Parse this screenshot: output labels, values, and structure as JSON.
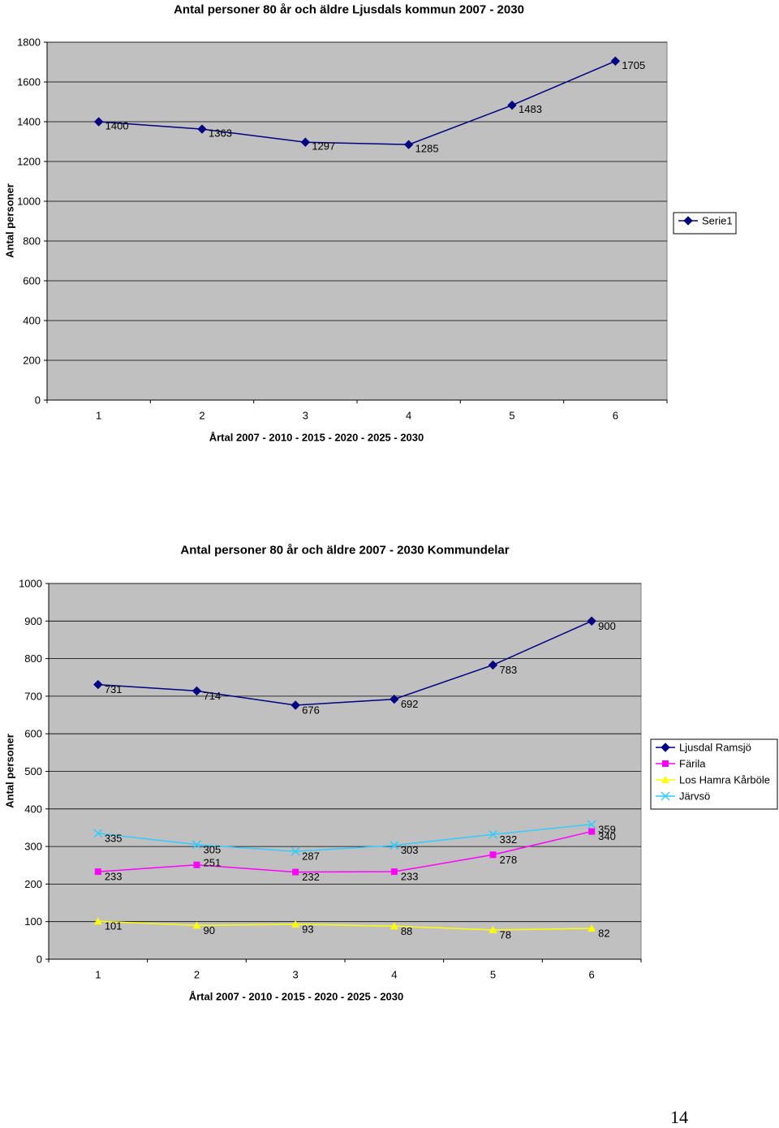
{
  "page_number": "14",
  "chart_data": [
    {
      "type": "line",
      "title": "Antal personer 80 år och äldre Ljusdals kommun 2007 - 2030",
      "xlabel": "Årtal 2007 - 2010 - 2015 - 2020 - 2025 - 2030",
      "ylabel": "Antal personer",
      "categories": [
        "1",
        "2",
        "3",
        "4",
        "5",
        "6"
      ],
      "ylim": [
        0,
        1800
      ],
      "yticks": [
        0,
        200,
        400,
        600,
        800,
        1000,
        1200,
        1400,
        1600,
        1800
      ],
      "grid": true,
      "legend_position": "right",
      "series": [
        {
          "name": "Serie1",
          "values": [
            1400,
            1363,
            1297,
            1285,
            1483,
            1705
          ],
          "color": "#000080",
          "marker": "diamond"
        }
      ]
    },
    {
      "type": "line",
      "title": "Antal personer 80 år och äldre 2007 - 2030 Kommundelar",
      "xlabel": "Årtal 2007 - 2010 - 2015 - 2020 - 2025 - 2030",
      "ylabel": "Antal personer",
      "categories": [
        "1",
        "2",
        "3",
        "4",
        "5",
        "6"
      ],
      "ylim": [
        0,
        1000
      ],
      "yticks": [
        0,
        100,
        200,
        300,
        400,
        500,
        600,
        700,
        800,
        900,
        1000
      ],
      "grid": true,
      "legend_position": "right",
      "series": [
        {
          "name": "Ljusdal Ramsjö",
          "values": [
            731,
            714,
            676,
            692,
            783,
            900
          ],
          "color": "#000080",
          "marker": "diamond"
        },
        {
          "name": "Färila",
          "values": [
            233,
            251,
            232,
            233,
            278,
            340
          ],
          "color": "#ff00ff",
          "marker": "square"
        },
        {
          "name": "Los Hamra Kårböle",
          "values": [
            101,
            90,
            93,
            88,
            78,
            82
          ],
          "color": "#ffff00",
          "marker": "triangle"
        },
        {
          "name": "Järvsö",
          "values": [
            335,
            305,
            287,
            303,
            332,
            359
          ],
          "color": "#33ccff",
          "marker": "x"
        }
      ]
    }
  ]
}
